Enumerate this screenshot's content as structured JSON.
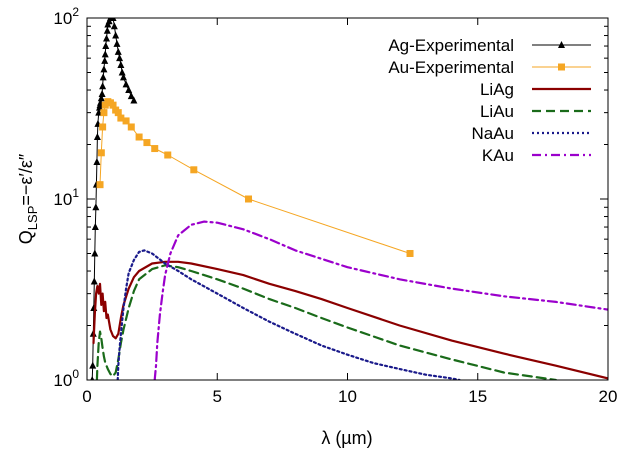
{
  "chart_data": {
    "type": "line",
    "xlabel": "λ (µm)",
    "ylabel": {
      "prefix": "Q",
      "sub": "LSP",
      "suffix": "=−ε′/ε″"
    },
    "xlim": [
      0,
      20
    ],
    "ylim": [
      1,
      100
    ],
    "yscale": "log",
    "xticks": [
      0,
      5,
      10,
      15,
      20
    ],
    "yticks": [
      {
        "value": 1,
        "base": "10",
        "exp": "0"
      },
      {
        "value": 10,
        "base": "10",
        "exp": "1"
      },
      {
        "value": 100,
        "base": "10",
        "exp": "2"
      }
    ],
    "grid": false,
    "legend_position": "top-right",
    "series": [
      {
        "name": "Ag-Experimental",
        "color": "#000000",
        "style": "solid",
        "marker": "triangle",
        "x": [
          0.2,
          0.22,
          0.24,
          0.26,
          0.28,
          0.3,
          0.32,
          0.34,
          0.36,
          0.38,
          0.4,
          0.42,
          0.45,
          0.48,
          0.5,
          0.52,
          0.55,
          0.58,
          0.6,
          0.62,
          0.65,
          0.68,
          0.7,
          0.72,
          0.75,
          0.78,
          0.8,
          0.85,
          0.9,
          1.0,
          1.05,
          1.1,
          1.15,
          1.2,
          1.25,
          1.3,
          1.35,
          1.4,
          1.5,
          1.6,
          1.7,
          1.8
        ],
        "y": [
          1.0,
          1.2,
          1.8,
          2.5,
          3.5,
          5.0,
          7.0,
          9.0,
          12.0,
          16.0,
          22.0,
          26.0,
          30.0,
          32.0,
          33.0,
          34.0,
          36.0,
          38.0,
          42.0,
          47.0,
          52.0,
          58.0,
          63.0,
          70.0,
          77.0,
          85.0,
          92.0,
          96.0,
          100.0,
          100.0,
          90.0,
          80.0,
          72.0,
          65.0,
          60.0,
          55.0,
          50.0,
          47.0,
          43.0,
          40.0,
          37.0,
          35.0
        ]
      },
      {
        "name": "Au-Experimental",
        "color": "#f5a623",
        "style": "solid",
        "marker": "square",
        "x": [
          0.5,
          0.55,
          0.6,
          0.65,
          0.7,
          0.8,
          0.9,
          1.0,
          1.1,
          1.2,
          1.3,
          1.5,
          1.7,
          2.0,
          2.3,
          2.6,
          3.1,
          4.1,
          6.2,
          12.4
        ],
        "y": [
          12.0,
          18.0,
          25.0,
          30.0,
          33.0,
          34.5,
          34.0,
          33.0,
          31.0,
          30.0,
          28.0,
          27.0,
          25.0,
          22.0,
          20.5,
          19.0,
          17.5,
          14.5,
          10.0,
          5.0
        ]
      },
      {
        "name": "LiAg",
        "color": "#8b0000",
        "style": "solid",
        "marker": "none",
        "x": [
          0.25,
          0.3,
          0.35,
          0.4,
          0.45,
          0.5,
          0.55,
          0.6,
          0.65,
          0.7,
          0.75,
          0.8,
          0.9,
          1.0,
          1.1,
          1.2,
          1.3,
          1.4,
          1.6,
          1.8,
          2.0,
          2.5,
          3.0,
          3.5,
          4.0,
          5.0,
          6.0,
          7.0,
          8.0,
          9.0,
          10.0,
          12.0,
          14.0,
          16.0,
          18.0,
          20.0
        ],
        "y": [
          1.6,
          2.3,
          3.0,
          3.3,
          3.0,
          3.4,
          2.6,
          3.0,
          2.4,
          2.7,
          2.2,
          2.3,
          1.9,
          1.75,
          1.7,
          1.8,
          2.2,
          2.6,
          3.2,
          3.7,
          4.0,
          4.4,
          4.5,
          4.5,
          4.4,
          4.1,
          3.8,
          3.4,
          3.1,
          2.8,
          2.5,
          2.0,
          1.65,
          1.4,
          1.2,
          1.02
        ]
      },
      {
        "name": "LiAu",
        "color": "#1a6b1a",
        "style": "dashed",
        "marker": "none",
        "x": [
          0.38,
          0.4,
          0.45,
          0.5,
          0.55,
          0.6,
          0.65,
          0.7,
          0.8,
          0.9,
          1.0,
          1.1,
          1.2,
          1.3,
          1.4,
          1.6,
          1.8,
          2.0,
          2.5,
          3.0,
          3.5,
          4.0,
          5.0,
          6.0,
          7.0,
          8.0,
          9.0,
          10.0,
          12.0,
          14.0,
          16.0,
          18.0
        ],
        "y": [
          1.0,
          1.2,
          1.6,
          1.85,
          1.7,
          1.5,
          1.35,
          1.25,
          1.15,
          1.08,
          1.05,
          1.1,
          1.3,
          1.6,
          1.9,
          2.5,
          3.1,
          3.6,
          4.1,
          4.3,
          4.2,
          4.0,
          3.6,
          3.2,
          2.8,
          2.5,
          2.2,
          1.95,
          1.55,
          1.3,
          1.1,
          1.0
        ]
      },
      {
        "name": "NaAu",
        "color": "#1a1a8b",
        "style": "dotted",
        "marker": "none",
        "x": [
          1.18,
          1.2,
          1.25,
          1.3,
          1.4,
          1.5,
          1.6,
          1.8,
          2.0,
          2.2,
          2.5,
          3.0,
          3.5,
          4.0,
          5.0,
          6.0,
          7.0,
          8.0,
          9.0,
          10.0,
          11.0,
          12.0,
          13.0,
          14.0,
          14.3
        ],
        "y": [
          1.0,
          1.2,
          1.5,
          1.8,
          2.5,
          3.2,
          3.9,
          4.6,
          5.1,
          5.2,
          5.0,
          4.4,
          4.0,
          3.6,
          3.0,
          2.5,
          2.1,
          1.8,
          1.55,
          1.38,
          1.24,
          1.15,
          1.07,
          1.02,
          1.0
        ]
      },
      {
        "name": "KAu",
        "color": "#9b00cc",
        "style": "dashdot",
        "marker": "none",
        "x": [
          2.6,
          2.65,
          2.7,
          2.8,
          2.9,
          3.0,
          3.2,
          3.5,
          4.0,
          4.5,
          5.0,
          6.0,
          7.0,
          8.0,
          10.0,
          12.0,
          14.0,
          16.0,
          18.0,
          20.0
        ],
        "y": [
          1.0,
          1.2,
          1.6,
          2.3,
          3.0,
          3.8,
          5.0,
          6.3,
          7.2,
          7.5,
          7.4,
          6.8,
          6.0,
          5.2,
          4.2,
          3.6,
          3.2,
          2.9,
          2.7,
          2.45
        ]
      }
    ]
  }
}
